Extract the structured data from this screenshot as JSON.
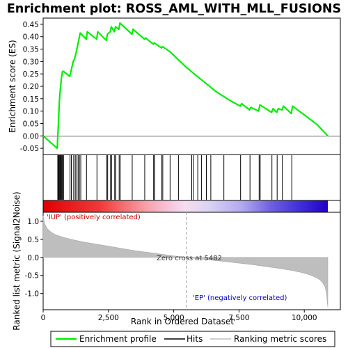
{
  "chart_data": {
    "type": "line",
    "title": "Enrichment plot: ROSS_AML_WITH_MLL_FUSIONS",
    "xlabel": "Rank in Ordered Dataset",
    "ylabel_top": "Enrichment score (ES)",
    "ylabel_bottom": "Ranked list metric (Signal2Noise)",
    "xlim": [
      0,
      10900
    ],
    "x_ticks": [
      0,
      2500,
      5000,
      7500,
      10000
    ],
    "x_tick_labels": [
      "0",
      "2,500",
      "5,000",
      "7,500",
      "10,000"
    ],
    "es_ylim": [
      -0.075,
      0.475
    ],
    "es_ticks": [
      -0.05,
      0.0,
      0.05,
      0.1,
      0.15,
      0.2,
      0.25,
      0.3,
      0.35,
      0.4,
      0.45
    ],
    "es_tick_labels": [
      "-0.05",
      "0.00",
      "0.05",
      "0.10",
      "0.15",
      "0.20",
      "0.25",
      "0.30",
      "0.35",
      "0.40",
      "0.45"
    ],
    "metric_ylim": [
      -1.45,
      1.25
    ],
    "metric_ticks": [
      1.0,
      0.5,
      0.0,
      -0.5,
      -1.0
    ],
    "metric_tick_labels": [
      "1.0",
      "0.5",
      "0.0",
      "-0.5",
      "-1.0"
    ],
    "enrichment_profile": {
      "x": [
        0,
        540,
        560,
        580,
        600,
        620,
        650,
        680,
        710,
        740,
        780,
        1020,
        1150,
        1200,
        1250,
        1310,
        1370,
        1420,
        1650,
        1690,
        2050,
        2090,
        2420,
        2460,
        2570,
        2610,
        2730,
        2770,
        2900,
        2940,
        3400,
        3440,
        3880,
        3920,
        4220,
        4260,
        4530,
        4570,
        4850,
        5150,
        5500,
        5900,
        6200,
        6600,
        6900,
        7200,
        7550,
        7600,
        7900,
        7950,
        8250,
        8300,
        8750,
        8800,
        8950,
        9000,
        9150,
        9200,
        9500,
        9550,
        10000,
        10500,
        10900
      ],
      "y": [
        0.0,
        -0.05,
        0.0,
        0.04,
        0.09,
        0.14,
        0.18,
        0.21,
        0.24,
        0.26,
        0.26,
        0.24,
        0.3,
        0.31,
        0.33,
        0.36,
        0.39,
        0.415,
        0.39,
        0.42,
        0.39,
        0.42,
        0.385,
        0.41,
        0.42,
        0.44,
        0.42,
        0.44,
        0.43,
        0.455,
        0.41,
        0.43,
        0.39,
        0.395,
        0.37,
        0.375,
        0.355,
        0.36,
        0.34,
        0.31,
        0.275,
        0.24,
        0.215,
        0.18,
        0.16,
        0.14,
        0.12,
        0.13,
        0.105,
        0.115,
        0.1,
        0.125,
        0.095,
        0.11,
        0.095,
        0.11,
        0.105,
        0.12,
        0.09,
        0.12,
        0.085,
        0.045,
        0.0
      ]
    },
    "hits": [
      560,
      590,
      610,
      640,
      660,
      690,
      720,
      750,
      780,
      1030,
      1080,
      1170,
      1230,
      1290,
      1340,
      1390,
      1440,
      1660,
      2060,
      2430,
      2470,
      2580,
      2620,
      2740,
      2780,
      2910,
      2950,
      3410,
      3890,
      4230,
      4270,
      4540,
      4580,
      4860,
      5180,
      5690,
      5750,
      5920,
      6060,
      6250,
      6420,
      6920,
      7560,
      7920,
      8270,
      8310,
      8760,
      8960,
      9160,
      9520
    ],
    "ranked_metric": {
      "x": [
        0,
        50,
        150,
        300,
        500,
        800,
        1200,
        1600,
        2000,
        2500,
        3000,
        3500,
        4000,
        4500,
        5000,
        5482,
        6000,
        6500,
        7000,
        7500,
        8000,
        8500,
        9000,
        9500,
        9900,
        10200,
        10400,
        10600,
        10700,
        10800,
        10850,
        10900
      ],
      "y": [
        1.15,
        0.95,
        0.8,
        0.7,
        0.62,
        0.55,
        0.48,
        0.42,
        0.37,
        0.31,
        0.25,
        0.19,
        0.14,
        0.09,
        0.04,
        0.0,
        -0.04,
        -0.08,
        -0.12,
        -0.16,
        -0.2,
        -0.25,
        -0.3,
        -0.36,
        -0.42,
        -0.48,
        -0.54,
        -0.62,
        -0.7,
        -0.82,
        -1.0,
        -1.38
      ]
    },
    "zero_cross": 5482,
    "annotations": {
      "positive": "'IUP' (positively correlated)",
      "negative": "'EP' (negatively correlated)",
      "zero_cross": "Zero cross at 5482"
    },
    "legend": {
      "placement": "bottom",
      "entries": [
        "Enrichment profile",
        "Hits",
        "Ranking metric scores"
      ]
    },
    "colors": {
      "profile": "#00ee00",
      "hits": "#000000",
      "metric_fill": "#bebebe",
      "positive_text": "#cc0000",
      "negative_text": "#0000cc",
      "zero_line": "#a0a0a0"
    }
  }
}
